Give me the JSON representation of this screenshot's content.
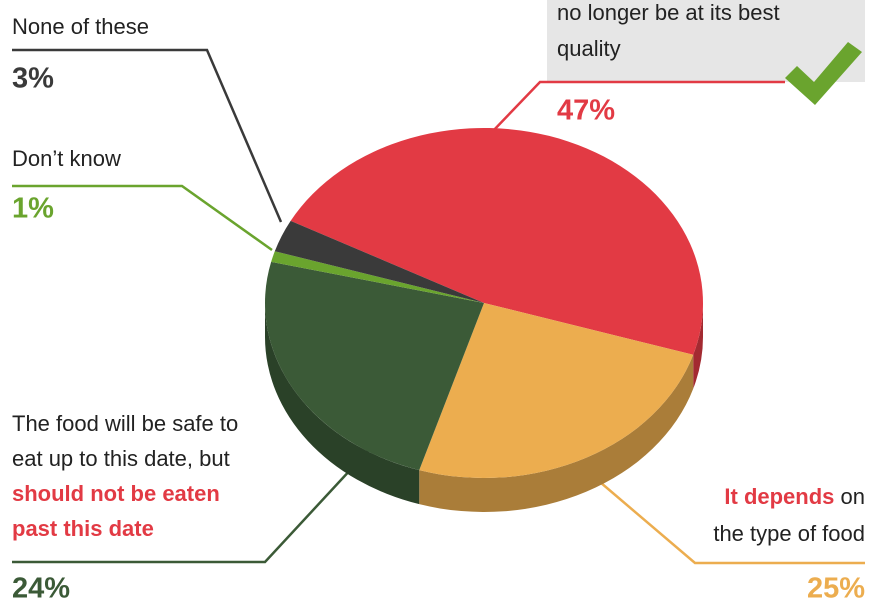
{
  "chart_data": {
    "type": "pie",
    "categories": [
      [
        [
          {
            "text": "no longer be at its best",
            "bold": false
          }
        ],
        [
          {
            "text": "quality",
            "bold": false
          }
        ]
      ],
      [
        [
          {
            "text": "It depends",
            "bold": true
          },
          {
            "text": " on",
            "bold": false
          }
        ],
        [
          {
            "text": "the type of food",
            "bold": false
          }
        ]
      ],
      [
        [
          {
            "text": "The food will be safe to",
            "bold": false
          }
        ],
        [
          {
            "text": "eat up to this date, but",
            "bold": false
          }
        ],
        [
          {
            "text": "should not be eaten",
            "bold": true
          }
        ],
        [
          {
            "text": "past this date",
            "bold": true
          }
        ]
      ],
      [
        [
          {
            "text": "Don’t know",
            "bold": false
          }
        ]
      ],
      [
        [
          {
            "text": "None of these",
            "bold": false
          }
        ]
      ]
    ],
    "values": [
      47,
      25,
      24,
      1,
      3
    ],
    "value_labels": [
      "47%",
      "25%",
      "24%",
      "1%",
      "3%"
    ],
    "colors": [
      "#e23a44",
      "#ecad4f",
      "#3b5a37",
      "#6aa42e",
      "#3a3a3a"
    ]
  }
}
